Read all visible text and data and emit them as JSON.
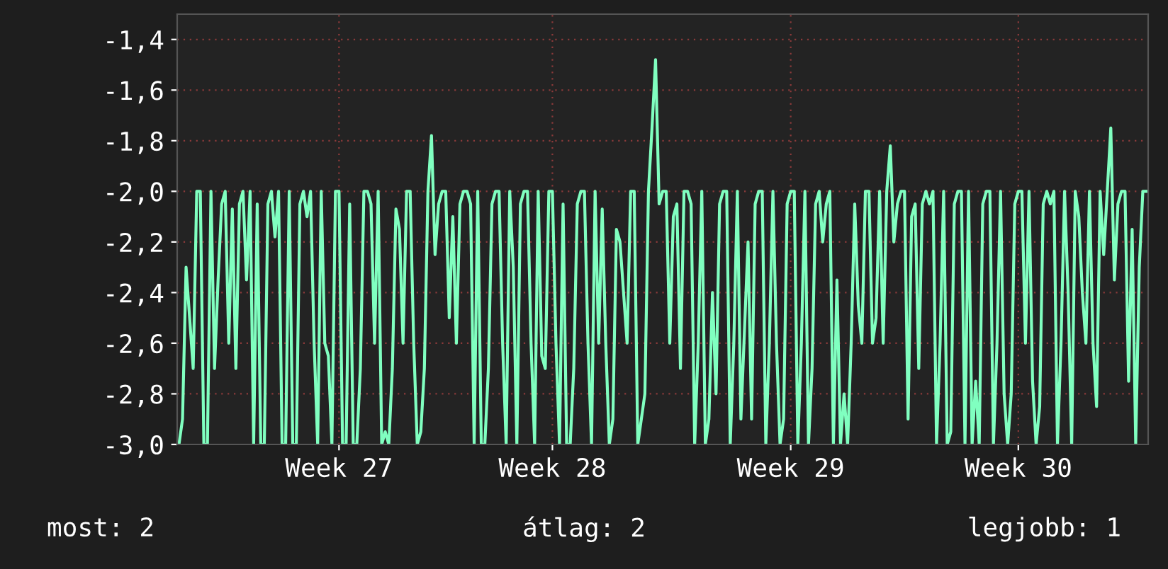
{
  "chart_data": {
    "type": "line",
    "categories": [
      null,
      null,
      null,
      null,
      null,
      null,
      null,
      null,
      null,
      null,
      null,
      null,
      null,
      null,
      null,
      null,
      null,
      null,
      null,
      null,
      null,
      null,
      null,
      null,
      null,
      null,
      null,
      null,
      null,
      null,
      null,
      null,
      null,
      null,
      null,
      null,
      null,
      null,
      null,
      null,
      null,
      null,
      null,
      null,
      null,
      "Week 27",
      null,
      null,
      null,
      null,
      null,
      null,
      null,
      null,
      null,
      null,
      null,
      null,
      null,
      null,
      null,
      null,
      null,
      null,
      null,
      null,
      null,
      null,
      null,
      null,
      null,
      null,
      null,
      null,
      null,
      null,
      null,
      null,
      null,
      null,
      null,
      null,
      null,
      null,
      null,
      null,
      null,
      null,
      null,
      null,
      null,
      null,
      null,
      null,
      null,
      null,
      null,
      null,
      null,
      null,
      null,
      null,
      null,
      null,
      null,
      "Week 28",
      null,
      null,
      null,
      null,
      null,
      null,
      null,
      null,
      null,
      null,
      null,
      null,
      null,
      null,
      null,
      null,
      null,
      null,
      null,
      null,
      null,
      null,
      null,
      null,
      null,
      null,
      null,
      null,
      null,
      null,
      null,
      null,
      null,
      null,
      null,
      null,
      null,
      null,
      null,
      null,
      null,
      null,
      null,
      null,
      null,
      null,
      null,
      null,
      null,
      null,
      null,
      null,
      null,
      null,
      null,
      null,
      null,
      null,
      null,
      null,
      null,
      null,
      null,
      null,
      null,
      null,
      "Week 29",
      null,
      null,
      null,
      null,
      null,
      null,
      null,
      null,
      null,
      null,
      null,
      null,
      null,
      null,
      null,
      null,
      null,
      null,
      null,
      null,
      null,
      null,
      null,
      null,
      null,
      null,
      null,
      null,
      null,
      null,
      null,
      null,
      null,
      null,
      null,
      null,
      null,
      null,
      null,
      null,
      null,
      null,
      null,
      null,
      null,
      null,
      null,
      null,
      null,
      null,
      null,
      null,
      null,
      null,
      null,
      null,
      null,
      null,
      null,
      null,
      null,
      null,
      null,
      "Week 30",
      null,
      null,
      null,
      null,
      null,
      null,
      null,
      null,
      null,
      null,
      null,
      null,
      null,
      null,
      null,
      null,
      null,
      null,
      null,
      null,
      null,
      null,
      null,
      null,
      null,
      null,
      null,
      null,
      null,
      null,
      null,
      null,
      null,
      null,
      null,
      null
    ],
    "series": [
      {
        "color": "#80ffc0",
        "values": [
          -3.0,
          -2.9,
          -2.3,
          -2.5,
          -2.7,
          -2.0,
          -2.0,
          -3.0,
          -3.0,
          -2.0,
          -2.7,
          -2.35,
          -2.05,
          -2.0,
          -2.6,
          -2.07,
          -2.7,
          -2.05,
          -2.0,
          -2.35,
          -2.0,
          -3.0,
          -2.05,
          -3.0,
          -3.0,
          -2.05,
          -2.0,
          -2.18,
          -2.0,
          -3.0,
          -3.0,
          -2.0,
          -3.0,
          -3.0,
          -2.05,
          -2.0,
          -2.1,
          -2.0,
          -2.6,
          -3.0,
          -2.0,
          -2.6,
          -2.65,
          -3.0,
          -2.0,
          -2.0,
          -3.0,
          -3.0,
          -2.05,
          -3.0,
          -3.0,
          -2.7,
          -2.0,
          -2.0,
          -2.05,
          -2.6,
          -2.0,
          -3.0,
          -2.95,
          -3.0,
          -2.7,
          -2.07,
          -2.15,
          -2.6,
          -2.0,
          -2.0,
          -2.6,
          -3.0,
          -2.95,
          -2.7,
          -2.0,
          -1.78,
          -2.25,
          -2.05,
          -2.0,
          -2.0,
          -2.5,
          -2.1,
          -2.6,
          -2.05,
          -2.0,
          -2.0,
          -2.05,
          -3.0,
          -2.0,
          -3.0,
          -3.0,
          -2.7,
          -2.05,
          -2.0,
          -2.0,
          -2.6,
          -3.0,
          -2.0,
          -2.3,
          -3.0,
          -2.05,
          -2.0,
          -2.0,
          -2.6,
          -3.0,
          -2.0,
          -2.65,
          -2.7,
          -2.0,
          -2.0,
          -2.6,
          -3.0,
          -2.05,
          -3.0,
          -3.0,
          -2.7,
          -2.05,
          -2.0,
          -2.0,
          -2.6,
          -3.0,
          -2.0,
          -2.6,
          -2.07,
          -2.6,
          -3.0,
          -2.9,
          -2.15,
          -2.2,
          -2.4,
          -2.6,
          -2.0,
          -2.0,
          -3.0,
          -2.9,
          -2.8,
          -2.0,
          -1.75,
          -1.48,
          -2.05,
          -2.0,
          -2.0,
          -2.6,
          -2.1,
          -2.05,
          -2.7,
          -2.0,
          -2.0,
          -2.05,
          -3.0,
          -2.6,
          -2.0,
          -3.0,
          -2.9,
          -2.4,
          -2.8,
          -2.05,
          -2.0,
          -2.0,
          -3.0,
          -2.6,
          -2.0,
          -2.9,
          -2.55,
          -2.2,
          -2.9,
          -2.05,
          -2.0,
          -2.0,
          -3.0,
          -2.6,
          -2.0,
          -2.6,
          -3.0,
          -2.9,
          -2.05,
          -2.0,
          -2.0,
          -3.0,
          -2.6,
          -2.0,
          -3.0,
          -2.7,
          -2.05,
          -2.0,
          -2.2,
          -2.05,
          -2.0,
          -3.0,
          -2.35,
          -3.0,
          -2.8,
          -3.0,
          -2.6,
          -2.05,
          -2.45,
          -2.6,
          -2.0,
          -2.0,
          -2.6,
          -2.5,
          -2.0,
          -2.6,
          -2.0,
          -1.82,
          -2.2,
          -2.05,
          -2.0,
          -2.0,
          -2.9,
          -2.1,
          -2.05,
          -2.7,
          -2.05,
          -2.0,
          -2.05,
          -2.0,
          -3.0,
          -2.6,
          -2.0,
          -3.0,
          -2.95,
          -2.05,
          -2.0,
          -2.0,
          -3.0,
          -2.0,
          -3.0,
          -2.75,
          -3.0,
          -2.05,
          -2.0,
          -2.0,
          -3.0,
          -2.6,
          -2.0,
          -2.8,
          -3.0,
          -2.8,
          -2.05,
          -2.0,
          -2.0,
          -2.6,
          -2.0,
          -2.75,
          -3.0,
          -2.85,
          -2.05,
          -2.0,
          -2.05,
          -2.0,
          -3.0,
          -2.6,
          -2.0,
          -2.4,
          -3.0,
          -2.0,
          -2.1,
          -2.4,
          -2.6,
          -2.0,
          -2.6,
          -2.85,
          -2.0,
          -2.25,
          -2.0,
          -1.75,
          -2.35,
          -2.05,
          -2.0,
          -2.0,
          -2.75,
          -2.15,
          -3.0,
          -2.3,
          -2.0,
          -2.0
        ]
      }
    ],
    "ylim": [
      -3.0,
      -1.3
    ],
    "yticks": [
      {
        "value": -3.0,
        "label": "-3,0"
      },
      {
        "value": -2.8,
        "label": "-2,8"
      },
      {
        "value": -2.6,
        "label": "-2,6"
      },
      {
        "value": -2.4,
        "label": "-2,4"
      },
      {
        "value": -2.2,
        "label": "-2,2"
      },
      {
        "value": -2.0,
        "label": "-2,0"
      },
      {
        "value": -1.8,
        "label": "-1,8"
      },
      {
        "value": -1.6,
        "label": "-1,6"
      },
      {
        "value": -1.4,
        "label": "-1,4"
      }
    ],
    "grid": true,
    "annotations": [
      "most: 2",
      "átlag: 2",
      "legjobb: 1"
    ]
  }
}
